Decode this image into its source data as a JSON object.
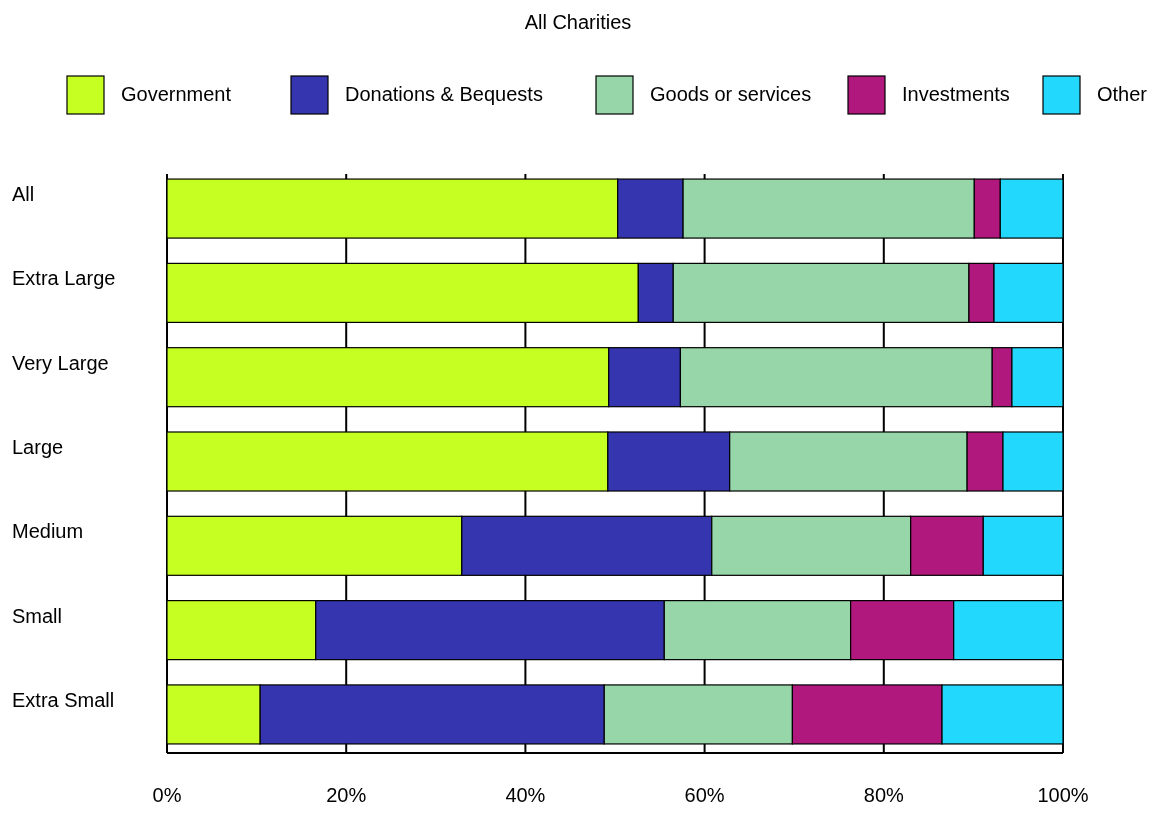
{
  "chart_data": {
    "type": "bar",
    "title": "All Charities",
    "orientation": "horizontal",
    "stacked": true,
    "legend": "top",
    "grid": "x",
    "categories": [
      "All",
      "Extra Large",
      "Very Large",
      "Large",
      "Medium",
      "Small",
      "Extra Small"
    ],
    "series": [
      {
        "name": "Government",
        "color": "#c6ff22",
        "values": [
          50.3,
          52.6,
          49.3,
          49.2,
          32.9,
          16.6,
          10.4
        ]
      },
      {
        "name": "Donations & Bequests",
        "color": "#3535b0",
        "values": [
          7.3,
          3.9,
          8.0,
          13.6,
          27.9,
          38.9,
          38.4
        ]
      },
      {
        "name": "Goods or services",
        "color": "#96d6a8",
        "values": [
          32.5,
          33.0,
          34.8,
          26.5,
          22.2,
          20.8,
          21.0
        ]
      },
      {
        "name": "Investments",
        "color": "#b0187d",
        "values": [
          2.9,
          2.8,
          2.2,
          4.0,
          8.1,
          11.5,
          16.7
        ]
      },
      {
        "name": "Other",
        "color": "#22d8fc",
        "values": [
          7.0,
          7.7,
          5.7,
          6.7,
          8.9,
          12.2,
          13.5
        ]
      }
    ],
    "xlim": [
      0,
      100
    ],
    "xticks": [
      {
        "value": 0,
        "label": "0%"
      },
      {
        "value": 20,
        "label": "20%"
      },
      {
        "value": 40,
        "label": "40%"
      },
      {
        "value": 60,
        "label": "60%"
      },
      {
        "value": 80,
        "label": "80%"
      },
      {
        "value": 100,
        "label": "100%"
      }
    ]
  }
}
